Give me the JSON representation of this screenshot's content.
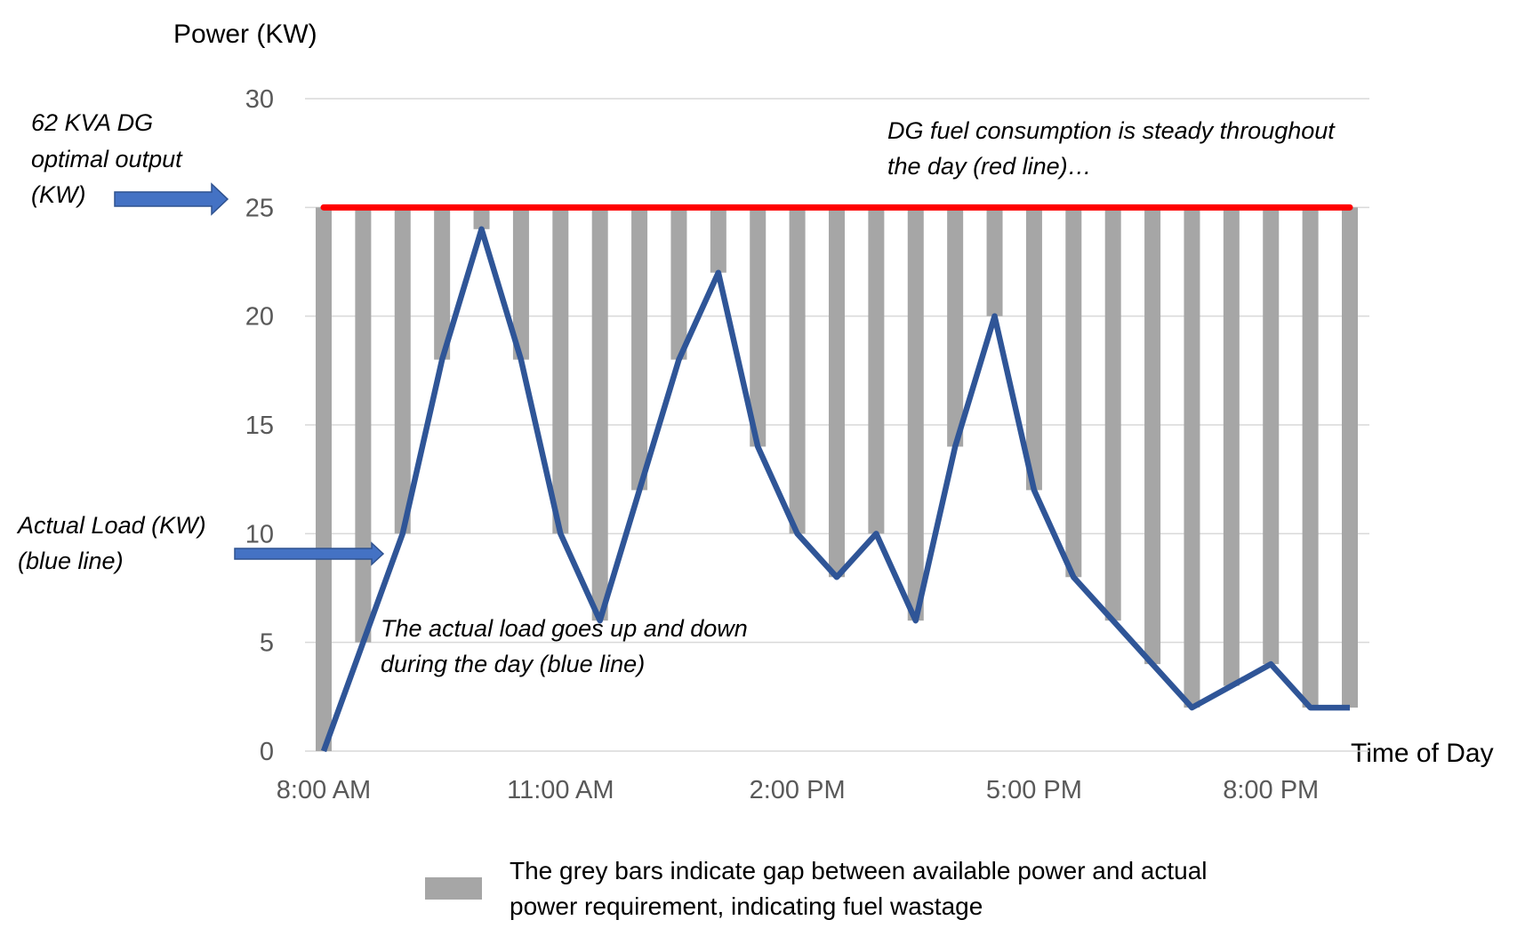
{
  "chart_data": {
    "type": "bar+line",
    "title": "",
    "ylabel": "Power (KW)",
    "xlabel": "Time of Day",
    "ylim": [
      0,
      30
    ],
    "yticks": [
      0,
      5,
      10,
      15,
      20,
      25,
      30
    ],
    "grid": true,
    "x": [
      "8:00 AM",
      "8:30 AM",
      "9:00 AM",
      "9:30 AM",
      "10:00 AM",
      "10:30 AM",
      "11:00 AM",
      "11:30 AM",
      "12:00 PM",
      "12:30 PM",
      "1:00 PM",
      "1:30 PM",
      "2:00 PM",
      "2:30 PM",
      "3:00 PM",
      "3:30 PM",
      "4:00 PM",
      "4:30 PM",
      "5:00 PM",
      "5:30 PM",
      "6:00 PM",
      "6:30 PM",
      "7:00 PM",
      "7:30 PM",
      "8:00 PM",
      "8:30 PM",
      "9:00 PM"
    ],
    "xtick_labels": [
      "8:00 AM",
      "11:00 AM",
      "2:00 PM",
      "5:00 PM",
      "8:00 PM"
    ],
    "dg_output": 25,
    "actual_load": [
      0,
      5,
      10,
      18,
      24,
      18,
      10,
      6,
      12,
      18,
      22,
      14,
      10,
      8,
      10,
      6,
      14,
      20,
      12,
      8,
      6,
      4,
      2,
      3,
      4,
      2,
      2
    ],
    "gap_bars_description": "gap from actual load up to 25 KW",
    "colors": {
      "dg_line": "#ff0000",
      "load_line": "#2f5597",
      "bars": "#a6a6a6",
      "arrow": "#4472c4",
      "grid": "#d9d9d9"
    }
  },
  "annotations": {
    "dg_label": [
      "62 KVA DG",
      "optimal output",
      "(KW)"
    ],
    "load_label": [
      "Actual Load (KW)",
      "(blue line)"
    ],
    "dg_note": [
      "DG fuel consumption is steady throughout",
      "the day (red line)…"
    ],
    "load_note": [
      "The actual load goes up and down",
      "during the day (blue line)"
    ]
  },
  "legend": {
    "text": [
      "The grey bars indicate gap between available power and actual",
      "power requirement, indicating fuel wastage"
    ]
  }
}
